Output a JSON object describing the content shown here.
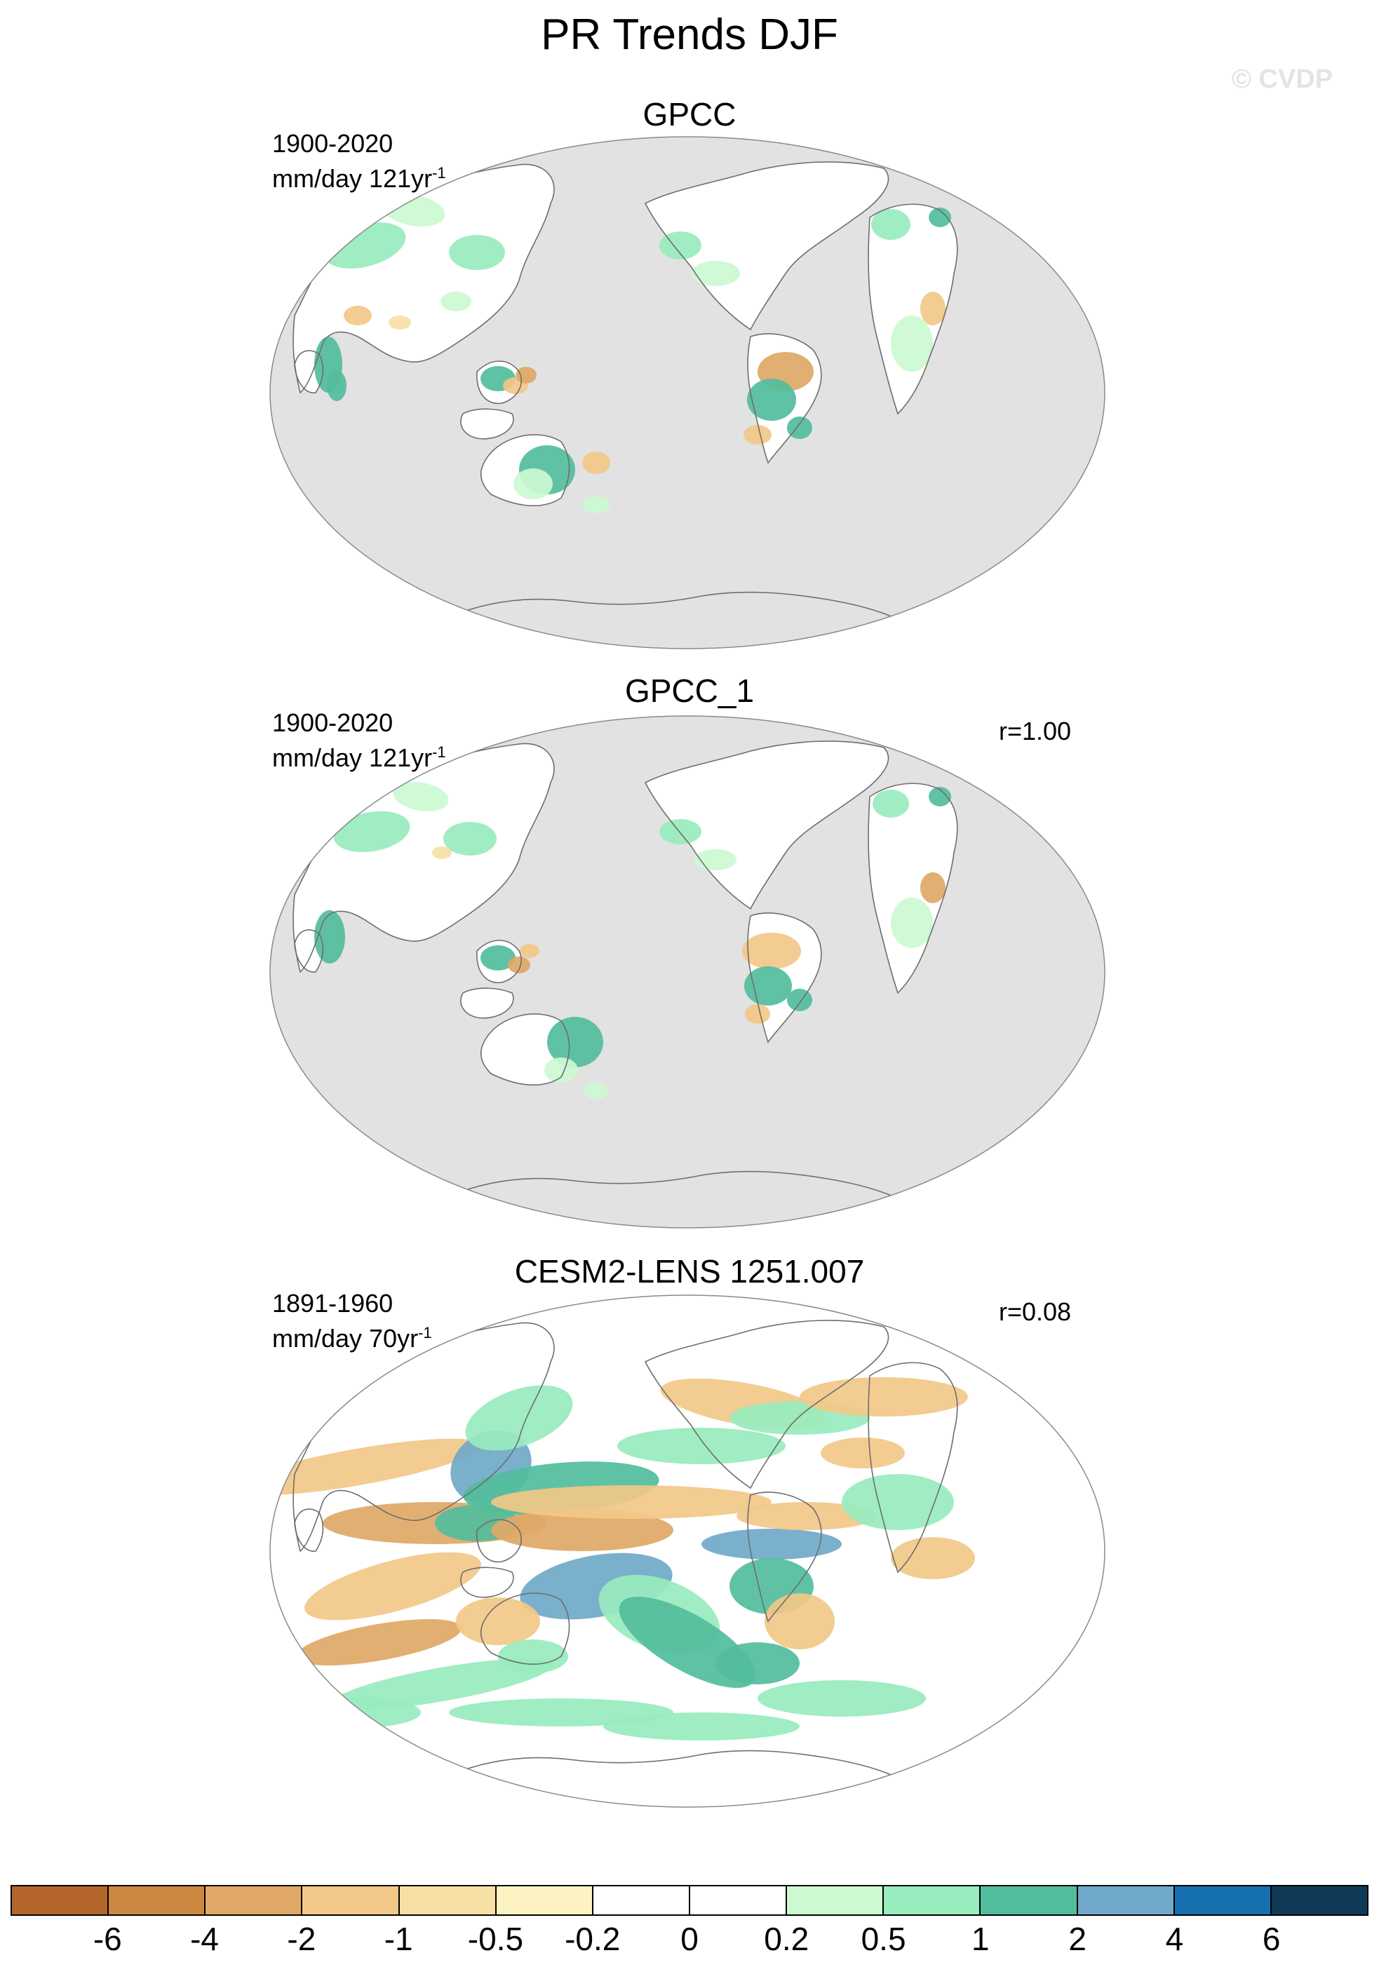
{
  "figure": {
    "title": "PR Trends DJF",
    "watermark": "© CVDP"
  },
  "panels": [
    {
      "title": "GPCC",
      "period": "1900-2020",
      "units_prefix": "mm/day 121yr",
      "units_exp": "-1",
      "corr": "",
      "land_only": true
    },
    {
      "title": "GPCC_1",
      "period": "1900-2020",
      "units_prefix": "mm/day 121yr",
      "units_exp": "-1",
      "corr": "r=1.00",
      "land_only": true
    },
    {
      "title": "CESM2-LENS 1251.007",
      "period": "1891-1960",
      "units_prefix": "mm/day 70yr",
      "units_exp": "-1",
      "corr": "r=0.08",
      "land_only": false
    }
  ],
  "colorbar": {
    "colors": [
      "#b5672b",
      "#cc8840",
      "#e0a866",
      "#f2c888",
      "#f6e0a6",
      "#fdf3c2",
      "#ffffff",
      "#ffffff",
      "#ccf8d2",
      "#98ecbe",
      "#52bd9c",
      "#70a9c9",
      "#1770b0",
      "#0e3a58"
    ],
    "labels": [
      "-6",
      "-4",
      "-2",
      "-1",
      "-0.5",
      "-0.2",
      "0",
      "0.2",
      "0.5",
      "1",
      "2",
      "4",
      "6"
    ]
  },
  "colors": {
    "missing_ocean": "#e2e2e2",
    "coastline": "#6e6e6e"
  }
}
